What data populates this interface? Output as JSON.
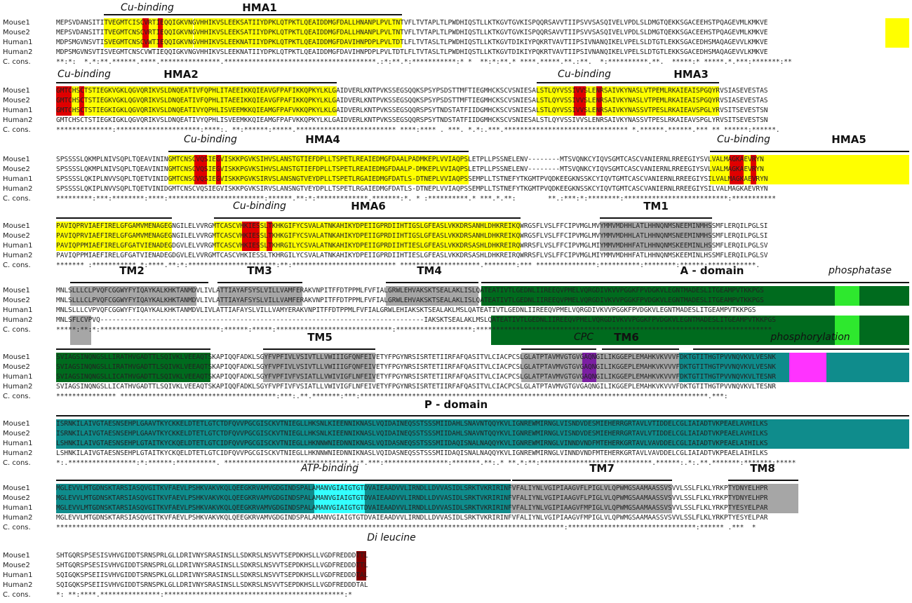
{
  "row_labels": [
    "Mouse1",
    "Mouse2",
    "Human1",
    "Human2",
    "C. cons."
  ],
  "colors": {
    "yellow": "#ffff00",
    "red": "#e00000",
    "grey": "#a6a6a6",
    "dark_green": "#006b1e",
    "bright_green": "#2ee82e",
    "teal": "#0f8c8c",
    "cyan": "#33ffff",
    "purple": "#7b1fa2",
    "magenta": "#ff33ff",
    "maroon": "#800000"
  },
  "blocks": [
    {
      "labels": [
        "Cu-binding",
        "HMA1"
      ],
      "rows": [
        "MEPSVDANSITITVEGMTCISCVRTIEQQIGKVNGVHHIKVSLEEKSATIIYDPKLQTPKTLQEAIDDMGFDALLHNANPLPVLTNTVFLTVTAPLTLPWDHIQSTLLKTKGVTGVKISPQQRSAVVTIIPSVVSASQIVELVPDLSLDMGTQEKKSGACEEHSTPQAGEVMLKMKVE",
        "MEPSVDANSITITVEGMTCNSCVRTIEQQIGKVNGVHHIKVSLEEKSATIIYDPKLQTPKTLQEAIDDMGFDALLHNANPLPVLTNTVFLTVTAPLTLPWDHIQSTLLKTKGVTGVKISPQQRSAVVTIIPSVVSASQIVELVPDLSLDMGTQEKKSGACEEHSTPQAGEVMLKMKVE",
        "MDPSMGVNSVTISVEGMTCNSCVWTIEQQIGKVNGVHHIKVSLEEKNATIIYDPKLQTPKTLQEAIDDMGFDAVIHNPDPLPVLTDTLFLTVTASLTLPWDHIQSTLLKTKGVTDIKIYPQKRTVAVTIIPSIVNANQIKELVPELSLDTGTLEKKSGACEDHSMAQAGEVVLKMKVE",
        "MDPSMGVNSVTISVEGMTCNSCVWTIEQQIGKVNGVHHIKVSLEEKNATIIYDPKLQTPKTLQEAIDDMGFDAVIHNPDPLPVLTDTLFLTVTASLTLPWDHIQSTLLKTKGVTDIKIYPQKRTVAVTIIPSIVNANQIKELVPELSLDTGTLEKKSGACEDHSMAQAGEVVLKMKVE",
        "**:*:  *.*:**.******.****.***************.**************************************.:*:**.*:***********:* *  **:*:**.* ****.*****.**.:**.  *:**********.**.  *****:* *****.*.***:*******:**"
      ]
    },
    {
      "labels": [
        "Cu-binding",
        "HMA2",
        "Cu-binding",
        "HMA3"
      ],
      "rows": [
        "GMTCHSCTSTIEGKVGKLQGVQRIKVSLDNQEATIVFQPHLITAEEIKKQIEAVGFPAFIKKQPKYLKLGAIDVERLKNTPVKSSEGSQQKSPSYPSDSTTMFTIEGMHCKSCVSNIESALSTLQYVSSIVVSLENRSAIVKYNASLVTPEMLRKAIEAISPGQYRVSIASEVESTAS",
        "GMTCHSCTSTIEGKVGKLQGVQRIKVSLDNQEATIVFQPHLITAEEIKKQIEAVGFPAFIKKQPKYLKLGAIDVERLKNTPVKSSEGSQQKSPSYPSDSTTMFTIEGMHCKSCVSNIESALSTLQYVSSIVVSLENRSAIVKYNASLVTPEMLRKAIEAISPGQYRVSIASEVESTAS",
        "GMTCHSCTSTIEGKIGKLQGVQRIKVSLDNQEATIVYQPHLISVEEMKKQIEAMGFPAFVKKQPKYLKLGAIDVERLKNTPVKSSEGSQQRSPSYTNDSTATFIIDGMHCKSCVSNIESALSTLQYVSSIVVSLENRSAIVKYNASSVTPESLRKAIEAVSPGLYRVSITSEVESTSN",
        "GMTCHSCTSTIEGKIGKLQGVQRIKVSLDNQEATIVYQPHLISVEEMKKQIEAMGFPAFVKKQPKYLKLGAIDVERLKNTPVKSSEGSQQRSPSYTNDSTATFIIDGMHCKSCVSNIESALSTLQYVSSIVVSLENRSAIVKYNASSVTPESLRKAIEAVSPGLYRVSITSEVESTSN",
        "**************:*********************:****:. **:******:*****.************************* ****:**** . ***. *.*:.***.******************************* *.******.******.*** ** ******:******."
      ]
    },
    {
      "labels": [
        "Cu-binding",
        "HMA4",
        "Cu-binding",
        "HMA5"
      ],
      "rows": [
        "SPSSSSLQKMPLNIVSQPLTQEAVININGMTCNSCVQSIEGVISKKPGVKSIHVSLANSTGTIEFDPLLTSPETLREAIEDMGFDAALPADMKEPLVVIAQPSLETPLLPSSNELENV--------MTSVQNKCYIQVSGMTCASCVANIERNLRREEGIYSVLVALMAGKAEVRYN",
        "SPSSSSLQKMPLNIVSQPLTQEAVININGMTCNSCVQSIEGVISKKPGVKSIHVSLANSTGTIEFDPLLTSPETLREAIEDMGFDAALP-DMKEPLVVIAQPSLETPLLPSSNELENV--------MTSVQNKCYIQVSGMTCASCVANIERNLRREEGIYSVLVALMAGKAEVRYN",
        "SPSSSSLQKIPLNVVSQPLTQETVINIDGMTCNSCVQSIEGVISKKPGVKSIRVSLANSNGTVEYDPLLTSPETLRGAIEDMGFDATLS-DTNEPLVVIAQPSSEMPLLTSTNEFYTKGMTPVQDKEEGKNSSKCYIQVTGMTCASCVANIERNLRREEGIYSILVALMAGKAEVRYN",
        "SPSSSSLQKIPLNVVSQPLTQETVINIDGMTCNSCVQSIEGVISKKPGVKSIRVSLANSNGTVEYDPLLTSPETLRGAIEDMGFDATLS-DTNEPLVVIAQPSSEMPLLTSTNEFYTKGMTPVQDKEEGKNSSKCYIQVTGMTCASCVANIERNLRREEGIYSILVALMAGKAEVRYN",
        "*********:***:********:****:************************:******.**:*:*************.*******:*. * :**********.* ***.*.**:        **.:***:*:********:**************************:***********"
      ]
    },
    {
      "labels": [
        "Cu-binding",
        "HMA6",
        "TM1"
      ],
      "rows": [
        "PAVIQPRVIAEFIRELGFGAMVMENAGEGNGILELVVRGMTCASCVHKIESSLTKHKGIFYCSVALATNKAHIKYDPEIIGPRDIIHTIGSLGFEASLVKKDRSANHLDHKREIKQWRGSFLVSLFFCIPVMGLMVYMMVMDHHLATLHHNQNMSNEEMINMHSSMFLERQILPGLSI",
        "PAVIQPRVIAEFIRELGFGAMVMENAGEGNGILELVVRGMTCASCVHKIESSLTKHKGIFYCSVALATNKAHIKYDPEIIGPRDIIHTIGSLGFEASLVKKDRSANHLDHKREIKQWRGSFLVSLFFCIPVMGLMVYMMVMDHHLATLHHNQNMSNEEMINMHSSMFLERQILPGLSI",
        "PAVIQPPMIAEFIRELGFGATVIENADEGDGVLELVVRGMTCASCVHKIESSLTKHRGILYCSVALATNKAHIKYDPEIIGPRDIIHTIESLGFEASLVKKDRSASHLDHKREIRQWRRSFLVSLFFCIPVMGLMIYMMVMDHHFATLHHNQNMSKEEMINLHSSMFLERQILPGLSV",
        "PAVIQPPMIAEFIRELGFGATVIENADEGDGVLELVVRGMTCASCVHKIESSLTKHRGILYCSVALATNKAHIKYDPEIIGPRDIIHTIESLGFEASLVKKDRSASHLDHKREIRQWRRSFLVSLFFCIPVMGLMIYMMVMDHHFATLHHNQNMSKEEMINLHSSMFLERQILPGLSV",
        "******* :*********** *:****.**:*:**********************:**:************************** ********************.********:*** ***************:**********:********:******:************."
      ]
    },
    {
      "labels": [
        "TM2",
        "TM3",
        "TM4",
        "A - domain",
        "phosphatase"
      ],
      "rows": [
        "MNLSLLLCLPVQFCGGWYFYIQAYKALKHKTANMDVLIVLATTIAYAFSYSLVILLVAMFERAKVNPITFFDTPPMLFVFIALGRWLEHVAKSKTSEALAKLISLQATEATIVTLGEDNLIIREEQVPMELVQRGDIVKVVPGGKFPVDGKVLEGNTMADESLITGEAMPVTKKPGS",
        "MNLSLLLCLPVQFCGGWYFYIQAYKALKHKTANMDVLIVLATTIAYAFSYSLVILLVAMFERAKVNPITFFDTPPMLFVFIALGRWLEHVAKSKTSEALAKLISLQATEATIVTLGEDNLIIREEQVPMELVQRGDIVKVVPGGKFPVDGKVLEGNTMADESLITGEAMPVTKKPGS",
        "MNLSLLLCVPVQFCGGWYFYIQAYKALKHKTANMDVLIVLATTIAFAYSLVILLVAMYERAKVNPITFFDTPPMLFVFIALGRWLEHIAKSKTSEALAKLMSLQATEATIVTLGEDNLIIREEQVPMELVQRGDIVKVVPGGKFPVDGKVLEGNTMADESLITGEAMPVTKKPGS",
        "MNLSFLCVPVQ---------------------------------------------------------------------------------IAKSKTSEALAKLMSLQATEATIVTLGEDNLIIREEQVPMELVQRGDIVKVVPGGKFPVDGKVLEGNTMADESLITGEAMPVTKKPGS",
        "*****:**:*:******************************:******:*****:*****************************:*******************:**************************************************************************"
      ]
    },
    {
      "labels": [
        "TM5",
        "CPC",
        "TM6",
        "phosphorylation"
      ],
      "rows": [
        "SVIAGSINQNGSLLIRATHVGADTTLSQIVKLVEEAQTSKAPIQQFADKLSGYFVPFIVLVSIVTLLVWIIIGFQNFEIVETYFPGYNRSISRTETIIRFAFQASITVLCIACPCSLGLATPTAVMVGTGVGAQNGILIKGGEPLEMAHKVKVVVFDKTGTITHGTPVVNQVKVLVESNK",
        "SVIAGSINQNGSLLIRATHVGADTTLSQIVKLVEEAQTSKAPIQQFADKLSGYFVPFIVLVSIVTLLVWIIIGFQNFEIVETYFPGYNRSISRTETIIRFAFQASITVLCIACPCSLGLATPTAVMVGTGVGAQNGILIKGGEPLEMAHKVKVVVFDKTGTITHGTPVVNQVKVLVESNK",
        "SVIAGSINQNGSLLICATHVGADTTLSQIVKLVEEAQTSKAPIQQFADKLSGYFVPFIVFVSIATLLVWIVIGFLNFEIVETYFPGYNRSISRTETIIRFAFQASITVLCIACPCSLGLATPTAVMVGTGVGAQNGILIKGGEPLEMAHKVKVVVFDKTGTITHGTPVVNQVKVLTESNR",
        "SVIAGSINQNGSLLICATHVGADTTLSQIVKLVEEAQTSKAPIQQFADKLSGYFVPFIVFVSIATLLVWIVIGFLNFEIVETYFPGYNRSISRTETIIRFAFQASITVLCIACPCSLGLATPTAVMVGTGVGAQNGILIKGGEPLEMAHKVKVVVFDKTGTITHGTPVVNQVKVLTESNR",
        "*************** ***************************************:***:.**.*******:***:***************************************************************************************.***:"
      ]
    },
    {
      "labels": [
        "P - domain"
      ],
      "rows": [
        "ISRNKILAIVGTAESNSEHPLGAAVTKYCKKELDTETLGTCTDFQVVPGCGISCKVTNIEGLLHKSNLKIEENNIKNASLVQIDAINEQSSTSSSMIIDAHLSNAVNTQQYKVLIGNREWMIRNGLVISNDVDESMIEHERRGRTAVLVTIDDELCGLIAIADTVKPEAELAVHILKS",
        "ISRNKILAIVGTAESNSEHPLGAAVTKYCKKELDTETLGTCTDFQVVPGCGISCKVTNIEGLLHKSNLKIEENNIKNASLVQIDAINEQSSTSSSMIIDAHLSNAVNTQQYKVLIGNREWMIRNGLVISNDVDESMIEHERRGRTAVLVTIDDELCGLIAIADTVKPEAELAVHILKS",
        "LSHNKILAIVGTAESNSEHPLGTAITKYCKQELDTETLGTCIDFQVVPGCGISCKVTNIEGLLHKNNWNIEDNNIKNASLVQIDASNEQSSTSSSMIIDAQISNALNAQQYKVLIGNREWMIRNGLVINNDVNDFMTEHERKGRTAVLVAVDDELCGLIAIADTVKPEAELAIHILKS",
        "LSHNKILAIVGTAESNSEHPLGTAITKYCKQELDTETLGTCIDFQVVPGCGISCKVTNIEGLLHKNNWNIEDNNIKNASLVQIDASNEQSSTSSSMIIDAQISNALNAQQYKVLIGNREWMIRNGLVINNDVNDFMTEHERKGRTAVLVAVDDELCGLIAIADTVKPEAELAIHILKS",
        "*:.*****************:*:******:**********. *******************************.*:*.***:****************:*******.**:.* **.*:**:****************************.******:.*:.**.*******:*******:*****"
      ]
    },
    {
      "labels": [
        "ATP-binding",
        "TM7",
        "TM8"
      ],
      "rows": [
        "MGLEVVLMTGDNSKTARSIASQVGITKVFAEVLPSHKVAKVKQLQEEGKRVAMVGDGINDSPALAMANVGIAIGTGTDVAIEAADVVLIRNDLLDVVASIDLSRKTVKRIRINFVFALIYNLVGIPIAAGVFLPIGLVLQPWMGSAAMAASSVSVVLSSLFLKLYRKPTYDNYELHPR",
        "MGLEVVLMTGDNSKTARSIASQVGITKVFAEVLPSHKVAKVKQLQEEGKRVAMVGDGINDSPALAMANVGIAIGTGTDVAIEAADVVLIRNDLLDVVASIDLSRKTVKRIRINFVFALIYNLVGIPIAAGVFLPIGLVLQPWMGSAAMAASSVSVVLSSLFLKLYRKPTYDNYELHPR",
        "MGLEVVLMTGDNSKTARSIASQVGITKVFAEVLPSHKVAKVKQLQEEGKRVAMVGDGINDSPALAMANVGIAIGTGTDVAIEAADVVLIRNDLLDVVASIDLSRKTVKRIRINFVFALIYNLVGIPIAAGVFMPIGLVLQPWMGSAAMAASSVSVVLSSLFLKLYRKPTYESYELPAR",
        "MGLEVVLMTGDNSKTARSIASQVGITKVFAEVLPSHKVAKVKQLQEEGKRVAMVGDGINDSPALAMANVGIAIGTGTDVAIEAADVVLIRNDLLDVVASIDLSRKTVKRIRINFVFALIYNLVGIPIAAGVFMPIGLVLQPWMGSAAMAASSVSVVLSSLFLKLYRKPTYESYELPAR",
        "*******************************************************************************************************************************:********************************:****** .***  *"
      ]
    },
    {
      "labels": [
        "Di leucine"
      ],
      "rows": [
        "SHTGQRSPSESISVHVGIDDTSRNSPRLGLLDRIVNYSRASINSLLSDKRSLNSVVTSEPDKHSLLVGDFREDDDTTL",
        "SHTGQRSPSESISVHVGIDDTSRNSPRLGLLDRIVNYSRASINSLLSDKRSLNSVVTSEPDKHSLLVGDFREDDDTTL",
        "SQIGQKSPSEIISVHVGIDDTSRNSPKLGLLDRIVNYSRASINSLLSDKRSLNSVVTSEPDKHSLLVGDFREDDDTAL",
        "SQIGQKSPSEIISVHVGIDDTSRNSPKLGLLDRIVNYSRASINSLLSDKRSLNSVVTSEPDKHSLLVGDFREDDDTAL",
        "*: **:****.***************:*********************************************:*"
      ]
    }
  ]
}
